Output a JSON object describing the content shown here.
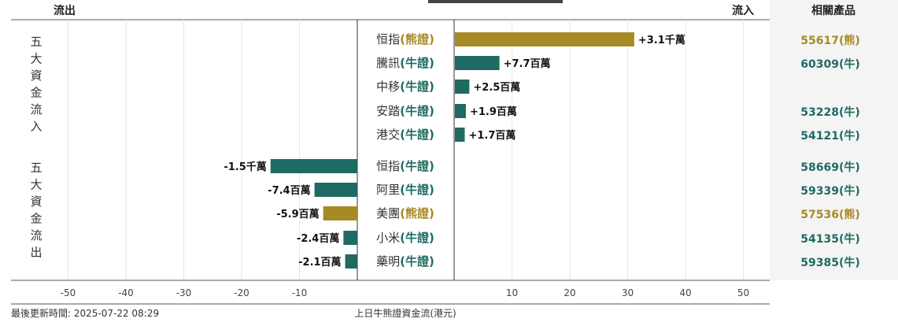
{
  "chart_data": {
    "type": "bar",
    "orientation": "horizontal-diverging",
    "header": {
      "left": "流出",
      "right": "流入",
      "products": "相關產品"
    },
    "groups": [
      {
        "label": "五大資金流入",
        "rows": [
          {
            "name": "恒指",
            "kind": "(熊證)",
            "value": 31,
            "label": "+3.1千萬",
            "product": "55617(熊)",
            "color": "#a88a25"
          },
          {
            "name": "騰訊",
            "kind": "(牛證)",
            "value": 7.7,
            "label": "+7.7百萬",
            "product": "60309(牛)",
            "color": "#1f6b63"
          },
          {
            "name": "中移",
            "kind": "(牛證)",
            "value": 2.5,
            "label": "+2.5百萬",
            "product": "",
            "color": "#1f6b63"
          },
          {
            "name": "安踏",
            "kind": "(牛證)",
            "value": 1.9,
            "label": "+1.9百萬",
            "product": "53228(牛)",
            "color": "#1f6b63"
          },
          {
            "name": "港交",
            "kind": "(牛證)",
            "value": 1.7,
            "label": "+1.7百萬",
            "product": "54121(牛)",
            "color": "#1f6b63"
          }
        ]
      },
      {
        "label": "五大資金流出",
        "rows": [
          {
            "name": "恒指",
            "kind": "(牛證)",
            "value": -15,
            "label": "-1.5千萬",
            "product": "58669(牛)",
            "color": "#1f6b63"
          },
          {
            "name": "阿里",
            "kind": "(牛證)",
            "value": -7.4,
            "label": "-7.4百萬",
            "product": "59339(牛)",
            "color": "#1f6b63"
          },
          {
            "name": "美團",
            "kind": "(熊證)",
            "value": -5.9,
            "label": "-5.9百萬",
            "product": "57536(熊)",
            "color": "#a88a25"
          },
          {
            "name": "小米",
            "kind": "(牛證)",
            "value": -2.4,
            "label": "-2.4百萬",
            "product": "54135(牛)",
            "color": "#1f6b63"
          },
          {
            "name": "藥明",
            "kind": "(牛證)",
            "value": -2.1,
            "label": "-2.1百萬",
            "product": "59385(牛)",
            "color": "#1f6b63"
          }
        ]
      }
    ],
    "x_ticks_left": [
      "-50",
      "-40",
      "-30",
      "-20",
      "-10"
    ],
    "x_ticks_right": [
      "10",
      "20",
      "30",
      "40",
      "50"
    ],
    "xlim": [
      -50,
      50
    ],
    "grid": true
  },
  "footer": {
    "updated": "最後更新時間: 2025-07-22 08:29",
    "caption": "上日牛熊證資金流(港元)"
  },
  "colors": {
    "bull": "#1f6b63",
    "bear": "#a88a25",
    "grid": "#e6e6e6",
    "panel": "#f4f4f4"
  }
}
